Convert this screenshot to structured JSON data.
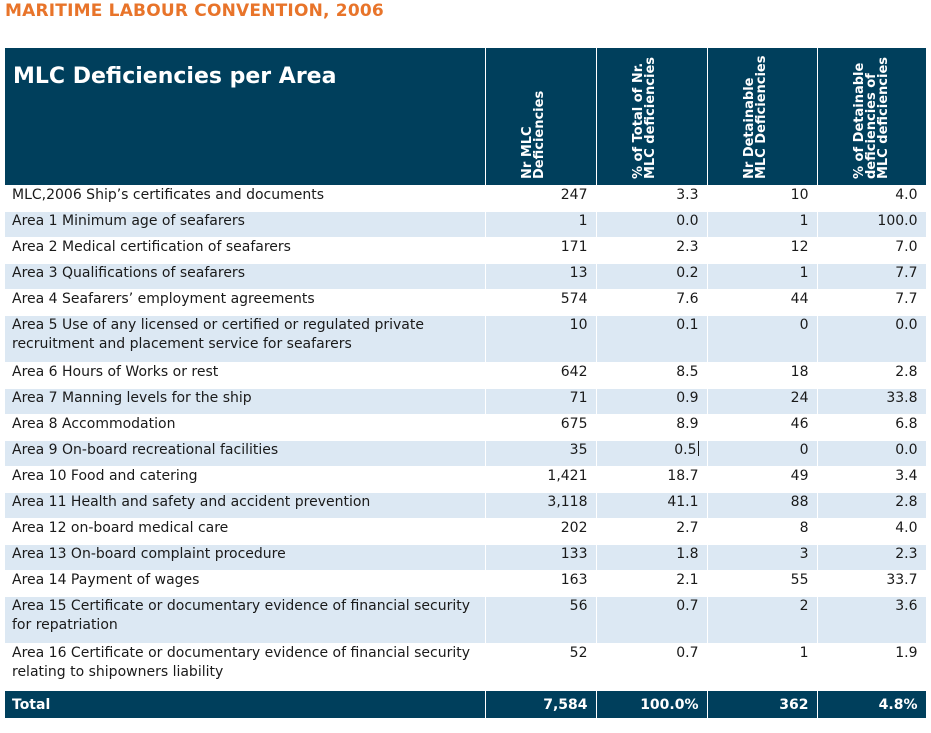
{
  "heading": "MARITIME LABOUR CONVENTION, 2006",
  "table": {
    "title": "MLC Deficiencies per Area",
    "columns": [
      "Nr MLC\nDeficiencies",
      "% of Total of Nr.\nMLC deficiencies",
      "Nr Detainable\nMLC Deficiencies",
      "% of Detainable\ndeficiencies of\nMLC deficiencies"
    ],
    "rows": [
      {
        "label": "MLC,2006 Ship’s certificates and documents",
        "nr": "247",
        "pct": "3.3",
        "det": "10",
        "det_pct": "4.0"
      },
      {
        "label": "Area 1 Minimum age of seafarers",
        "nr": "1",
        "pct": "0.0",
        "det": "1",
        "det_pct": "100.0"
      },
      {
        "label": "Area 2 Medical certification of seafarers",
        "nr": "171",
        "pct": "2.3",
        "det": "12",
        "det_pct": "7.0"
      },
      {
        "label": "Area 3 Qualifications of seafarers",
        "nr": "13",
        "pct": "0.2",
        "det": "1",
        "det_pct": "7.7"
      },
      {
        "label": "Area 4 Seafarers’ employment agreements",
        "nr": "574",
        "pct": "7.6",
        "det": "44",
        "det_pct": "7.7"
      },
      {
        "label": "Area 5 Use of any licensed or certified or regulated private recruitment and placement service for seafarers",
        "nr": "10",
        "pct": "0.1",
        "det": "0",
        "det_pct": "0.0"
      },
      {
        "label": "Area 6 Hours of Works or rest",
        "nr": "642",
        "pct": "8.5",
        "det": "18",
        "det_pct": "2.8"
      },
      {
        "label": "Area 7 Manning levels for the ship",
        "nr": "71",
        "pct": "0.9",
        "det": "24",
        "det_pct": "33.8"
      },
      {
        "label": "Area 8 Accommodation",
        "nr": "675",
        "pct": "8.9",
        "det": "46",
        "det_pct": "6.8"
      },
      {
        "label": "Area 9 On-board recreational facilities",
        "nr": "35",
        "pct": "0.5",
        "det": "0",
        "det_pct": "0.0"
      },
      {
        "label": "Area 10 Food and catering",
        "nr": "1,421",
        "pct": "18.7",
        "det": "49",
        "det_pct": "3.4"
      },
      {
        "label": "Area 11 Health and safety and accident prevention",
        "nr": "3,118",
        "pct": "41.1",
        "det": "88",
        "det_pct": "2.8"
      },
      {
        "label": "Area 12 on-board medical care",
        "nr": "202",
        "pct": "2.7",
        "det": "8",
        "det_pct": "4.0"
      },
      {
        "label": "Area 13 On-board complaint procedure",
        "nr": "133",
        "pct": "1.8",
        "det": "3",
        "det_pct": "2.3"
      },
      {
        "label": "Area 14 Payment of wages",
        "nr": "163",
        "pct": "2.1",
        "det": "55",
        "det_pct": "33.7"
      },
      {
        "label": "Area 15 Certificate or documentary evidence of financial security for repatriation",
        "nr": "56",
        "pct": "0.7",
        "det": "2",
        "det_pct": "3.6"
      },
      {
        "label": "Area 16 Certificate or documentary evidence of financial security relating to shipowners liability",
        "nr": "52",
        "pct": "0.7",
        "det": "1",
        "det_pct": "1.9"
      }
    ],
    "total": {
      "label": "Total",
      "nr": "7,584",
      "pct": "100.0%",
      "det": "362",
      "det_pct": "4.8%"
    }
  },
  "colors": {
    "heading": "#e8742a",
    "header_bg": "#003f5c",
    "stripe": "#dce8f3"
  }
}
